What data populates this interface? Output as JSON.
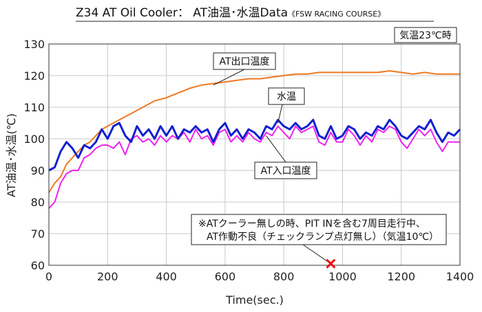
{
  "chart_data": {
    "type": "line",
    "title": "Z34 AT Oil Cooler： AT油温･水温Data",
    "title_suffix": "《FSW RACING COURSE》",
    "condition": "気温23℃時",
    "xlabel": "Time(sec.)",
    "ylabel": "AT油温･水温(℃)",
    "xlim": [
      0,
      1400
    ],
    "ylim": [
      60,
      130
    ],
    "xticks": [
      0,
      200,
      400,
      600,
      800,
      1000,
      1200,
      1400
    ],
    "yticks": [
      60,
      70,
      80,
      90,
      100,
      110,
      120,
      130
    ],
    "grid": true,
    "series": [
      {
        "name": "AT出口温度",
        "color": "#f07820",
        "x": [
          0,
          20,
          40,
          60,
          80,
          100,
          120,
          140,
          160,
          180,
          200,
          240,
          280,
          320,
          360,
          400,
          440,
          480,
          520,
          560,
          600,
          640,
          680,
          720,
          760,
          800,
          840,
          880,
          920,
          960,
          1000,
          1040,
          1080,
          1120,
          1160,
          1200,
          1240,
          1280,
          1320,
          1360,
          1400
        ],
        "y": [
          83,
          86,
          88,
          92,
          94,
          96,
          98,
          99,
          101,
          103,
          104,
          106,
          108,
          110,
          112,
          113,
          114.5,
          116,
          117,
          117.5,
          118,
          118.5,
          119,
          119,
          119.5,
          120,
          120.5,
          120.5,
          121,
          121,
          121,
          121,
          121,
          121,
          121.5,
          121,
          120.5,
          121,
          120.5,
          120.5,
          120.5
        ]
      },
      {
        "name": "水温",
        "color": "#1020d0",
        "x": [
          0,
          20,
          40,
          60,
          80,
          100,
          120,
          140,
          160,
          180,
          200,
          220,
          240,
          260,
          280,
          300,
          320,
          340,
          360,
          380,
          400,
          420,
          440,
          460,
          480,
          500,
          520,
          540,
          560,
          580,
          600,
          620,
          640,
          660,
          680,
          700,
          720,
          740,
          760,
          780,
          800,
          820,
          840,
          860,
          880,
          900,
          920,
          940,
          960,
          980,
          1000,
          1020,
          1040,
          1060,
          1080,
          1100,
          1120,
          1140,
          1160,
          1180,
          1200,
          1220,
          1240,
          1260,
          1280,
          1300,
          1320,
          1340,
          1360,
          1380,
          1400
        ],
        "y": [
          90,
          91,
          96,
          99,
          97,
          94,
          98,
          97,
          99,
          103,
          100,
          104,
          105,
          101,
          99,
          104,
          101,
          103,
          100,
          104,
          101,
          104,
          100,
          103,
          102,
          104,
          102,
          103,
          99,
          103,
          105,
          101,
          103,
          100,
          103,
          102,
          100,
          104,
          103,
          106,
          104,
          103,
          105,
          103,
          104,
          106,
          101,
          100,
          104,
          100,
          101,
          104,
          103,
          100,
          102,
          101,
          104,
          103,
          106,
          104,
          101,
          100,
          102,
          104,
          103,
          106,
          102,
          99,
          102,
          101,
          103
        ]
      },
      {
        "name": "AT入口温度",
        "color": "#f020f0",
        "x": [
          0,
          20,
          40,
          60,
          80,
          100,
          120,
          140,
          160,
          180,
          200,
          220,
          240,
          260,
          280,
          300,
          320,
          340,
          360,
          380,
          400,
          420,
          440,
          460,
          480,
          500,
          520,
          540,
          560,
          580,
          600,
          620,
          640,
          660,
          680,
          700,
          720,
          740,
          760,
          780,
          800,
          820,
          840,
          860,
          880,
          900,
          920,
          940,
          960,
          980,
          1000,
          1020,
          1040,
          1060,
          1080,
          1100,
          1120,
          1140,
          1160,
          1180,
          1200,
          1220,
          1240,
          1260,
          1280,
          1300,
          1320,
          1340,
          1360,
          1380,
          1400
        ],
        "y": [
          78,
          80,
          86,
          89,
          90,
          90,
          94,
          95,
          97,
          98,
          98,
          97,
          99,
          95,
          100,
          101,
          99,
          100,
          98,
          101,
          99,
          101,
          100,
          102,
          99,
          103,
          100,
          101,
          98,
          102,
          103,
          99,
          101,
          99,
          102,
          100,
          99,
          102,
          101,
          104,
          102,
          100,
          104,
          102,
          103,
          104,
          99,
          98,
          102,
          99,
          99,
          103,
          101,
          98,
          101,
          99,
          103,
          102,
          104,
          103,
          99,
          97,
          100,
          103,
          101,
          103,
          99,
          96,
          99,
          99,
          99
        ]
      }
    ],
    "annotations": [
      {
        "text": "AT出口温度",
        "anchor_x": 560,
        "anchor_y": 117
      },
      {
        "text": "水温",
        "anchor_x": 780,
        "anchor_y": 105
      },
      {
        "text": "AT入口温度",
        "anchor_x": 740,
        "anchor_y": 101
      }
    ],
    "note": {
      "lines": [
        "※ATクーラー無しの時、PIT INを含む7周目走行中、",
        "AT作動不良（チェックランプ点灯無し）（気温10℃）"
      ],
      "marker": {
        "x": 960,
        "y": 60.5,
        "color": "#ee1010",
        "symbol": "x"
      }
    }
  }
}
